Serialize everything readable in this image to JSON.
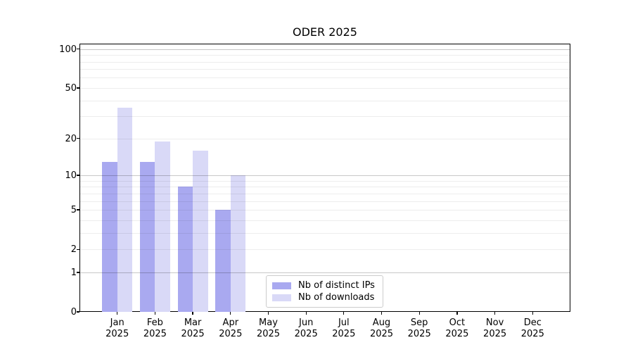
{
  "title": "ODER 2025",
  "legend": {
    "entries": [
      {
        "label": "Nb of distinct IPs",
        "color": "#a9a9f0"
      },
      {
        "label": "Nb of downloads",
        "color": "#d9d9f7"
      }
    ]
  },
  "chart_data": {
    "type": "bar",
    "title": "ODER 2025",
    "categories": [
      "Jan",
      "Feb",
      "Mar",
      "Apr",
      "May",
      "Jun",
      "Jul",
      "Aug",
      "Sep",
      "Oct",
      "Nov",
      "Dec"
    ],
    "category_sublabel": "2025",
    "series": [
      {
        "name": "Nb of distinct IPs",
        "color": "#a9a9f0",
        "values": [
          13,
          13,
          8,
          5,
          0,
          0,
          0,
          0,
          0,
          0,
          0,
          0
        ]
      },
      {
        "name": "Nb of downloads",
        "color": "#d9d9f7",
        "values": [
          35,
          19,
          16,
          10,
          0,
          0,
          0,
          0,
          0,
          0,
          0,
          0
        ]
      }
    ],
    "xlabel": "",
    "ylabel": "",
    "y_axis": {
      "scale": "log10(1+v)",
      "tick_labels": [
        100,
        50,
        20,
        10,
        5,
        2,
        1,
        0
      ],
      "major_gridlines": [
        1,
        10,
        100
      ],
      "minor_gridlines": [
        2,
        3,
        4,
        5,
        6,
        7,
        8,
        9,
        20,
        30,
        40,
        50,
        60,
        70,
        80,
        90
      ],
      "max_value": 110,
      "min_value": 0
    },
    "grid": "on",
    "legend_position": "lower center"
  }
}
